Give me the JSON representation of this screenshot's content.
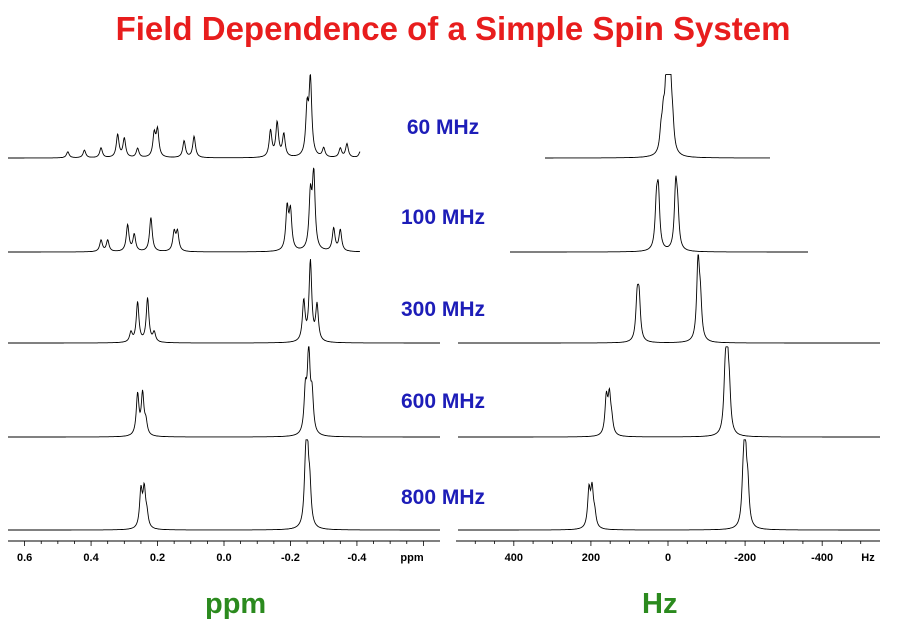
{
  "title": "Field Dependence of a Simple Spin System",
  "chart_data": {
    "type": "line",
    "title": "Field Dependence of a Simple Spin System",
    "spectra": [
      {
        "label": "60 MHz",
        "ppm_peaks": [
          [
            0.47,
            0.08
          ],
          [
            0.42,
            0.1
          ],
          [
            0.37,
            0.13
          ],
          [
            0.32,
            0.3
          ],
          [
            0.3,
            0.25
          ],
          [
            0.26,
            0.12
          ],
          [
            0.21,
            0.3
          ],
          [
            0.2,
            0.35
          ],
          [
            0.12,
            0.22
          ],
          [
            0.09,
            0.28
          ],
          [
            -0.14,
            0.35
          ],
          [
            -0.16,
            0.45
          ],
          [
            -0.18,
            0.3
          ],
          [
            -0.25,
            0.6
          ],
          [
            -0.26,
            1.0
          ],
          [
            -0.3,
            0.12
          ],
          [
            -0.35,
            0.12
          ],
          [
            -0.37,
            0.18
          ],
          [
            -0.41,
            0.08
          ]
        ],
        "hz_peaks": [
          [
            18,
            0.25
          ],
          [
            12,
            0.4
          ],
          [
            5,
            0.6
          ],
          [
            0,
            1.0
          ],
          [
            -6,
            0.8
          ],
          [
            -12,
            0.3
          ]
        ]
      },
      {
        "label": "100 MHz",
        "ppm_peaks": [
          [
            0.37,
            0.15
          ],
          [
            0.35,
            0.15
          ],
          [
            0.29,
            0.35
          ],
          [
            0.27,
            0.22
          ],
          [
            0.22,
            0.45
          ],
          [
            0.15,
            0.25
          ],
          [
            0.14,
            0.25
          ],
          [
            -0.19,
            0.55
          ],
          [
            -0.2,
            0.5
          ],
          [
            -0.26,
            0.7
          ],
          [
            -0.27,
            1.0
          ],
          [
            -0.33,
            0.3
          ],
          [
            -0.35,
            0.28
          ]
        ],
        "hz_peaks": [
          [
            30,
            0.55
          ],
          [
            25,
            0.7
          ],
          [
            -20,
            0.8
          ],
          [
            -25,
            0.45
          ]
        ]
      },
      {
        "label": "300 MHz",
        "ppm_peaks": [
          [
            0.28,
            0.12
          ],
          [
            0.26,
            0.5
          ],
          [
            0.23,
            0.55
          ],
          [
            0.21,
            0.12
          ],
          [
            -0.24,
            0.5
          ],
          [
            -0.26,
            1.0
          ],
          [
            -0.28,
            0.45
          ]
        ],
        "hz_peaks": [
          [
            80,
            0.5
          ],
          [
            75,
            0.5
          ],
          [
            -78,
            1.0
          ],
          [
            -84,
            0.45
          ]
        ]
      },
      {
        "label": "600 MHz",
        "ppm_peaks": [
          [
            0.26,
            0.5
          ],
          [
            0.245,
            0.5
          ],
          [
            0.235,
            0.15
          ],
          [
            -0.245,
            0.5
          ],
          [
            -0.255,
            1.0
          ],
          [
            -0.265,
            0.45
          ]
        ],
        "hz_peaks": [
          [
            160,
            0.45
          ],
          [
            152,
            0.45
          ],
          [
            146,
            0.15
          ],
          [
            -148,
            0.5
          ],
          [
            -153,
            1.0
          ],
          [
            -159,
            0.45
          ]
        ]
      },
      {
        "label": "800 MHz",
        "ppm_peaks": [
          [
            0.25,
            0.45
          ],
          [
            0.24,
            0.45
          ],
          [
            0.232,
            0.15
          ],
          [
            -0.245,
            0.45
          ],
          [
            -0.25,
            1.0
          ],
          [
            -0.258,
            0.45
          ]
        ],
        "hz_peaks": [
          [
            205,
            0.45
          ],
          [
            197,
            0.45
          ],
          [
            190,
            0.15
          ],
          [
            -195,
            0.45
          ],
          [
            -200,
            1.0
          ],
          [
            -207,
            0.45
          ]
        ]
      }
    ],
    "ppm_axis": {
      "ticks": [
        0.6,
        0.4,
        0.2,
        0.0,
        -0.2,
        -0.4
      ],
      "tick_labels": [
        "0.6",
        "0.4",
        "0.2",
        "0.0",
        "-0.2",
        "-0.4"
      ],
      "unit_label": "ppm",
      "xlim": [
        0.65,
        -0.65
      ]
    },
    "hz_axis": {
      "ticks": [
        400,
        200,
        0,
        -200,
        -400
      ],
      "tick_labels": [
        "400",
        "200",
        "0",
        "-200",
        "-400"
      ],
      "unit_label": "Hz",
      "xlim": [
        550,
        -550
      ]
    },
    "xlabel_left": "ppm",
    "xlabel_right": "Hz"
  }
}
